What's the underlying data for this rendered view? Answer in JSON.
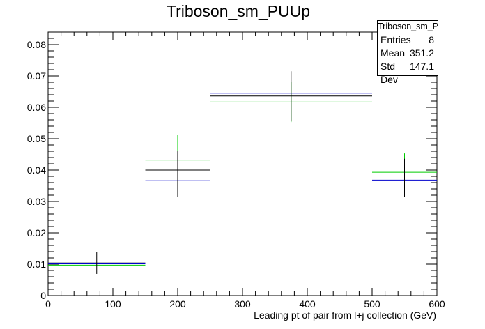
{
  "chart_data": {
    "type": "scatter",
    "title": "Triboson_sm_PUUp",
    "xlabel": "Leading pt of pair from l+j collection (GeV)",
    "ylabel": "",
    "xlim": [
      0,
      600
    ],
    "ylim": [
      0,
      0.084
    ],
    "xticks": [
      0,
      100,
      200,
      300,
      400,
      500,
      600
    ],
    "yticks": [
      0,
      0.01,
      0.02,
      0.03,
      0.04,
      0.05,
      0.06,
      0.07,
      0.08
    ],
    "ytick_labels": [
      "0",
      "0.01",
      "0.02",
      "0.03",
      "0.04",
      "0.05",
      "0.06",
      "0.07",
      "0.08"
    ],
    "grid": false,
    "legend": "top-right",
    "series": [
      {
        "color": "#00cc00",
        "points": [
          {
            "xlow": 0,
            "xhigh": 150,
            "y": 0.0097,
            "ylow": 0.0097,
            "yhigh": 0.0097
          },
          {
            "xlow": 150,
            "xhigh": 250,
            "y": 0.0432,
            "ylow": 0.0352,
            "yhigh": 0.0512
          },
          {
            "xlow": 250,
            "xhigh": 500,
            "y": 0.0617,
            "ylow": 0.0553,
            "yhigh": 0.0681
          },
          {
            "xlow": 500,
            "xhigh": 600,
            "y": 0.0393,
            "ylow": 0.0333,
            "yhigh": 0.0453
          }
        ]
      },
      {
        "color": "#0000cc",
        "points": [
          {
            "xlow": 0,
            "xhigh": 150,
            "y": 0.0101,
            "ylow": 0.0101,
            "yhigh": 0.0101
          },
          {
            "xlow": 150,
            "xhigh": 250,
            "y": 0.0366,
            "ylow": 0.0366,
            "yhigh": 0.0366
          },
          {
            "xlow": 250,
            "xhigh": 500,
            "y": 0.0645,
            "ylow": 0.0645,
            "yhigh": 0.0645
          },
          {
            "xlow": 500,
            "xhigh": 600,
            "y": 0.0368,
            "ylow": 0.0368,
            "yhigh": 0.0368
          }
        ]
      },
      {
        "color": "#000000",
        "points": [
          {
            "xlow": 0,
            "xhigh": 150,
            "y": 0.0104,
            "ylow": 0.0069,
            "yhigh": 0.0139
          },
          {
            "xlow": 150,
            "xhigh": 250,
            "y": 0.04,
            "ylow": 0.0314,
            "yhigh": 0.0461
          },
          {
            "xlow": 250,
            "xhigh": 500,
            "y": 0.0636,
            "ylow": 0.0557,
            "yhigh": 0.0715
          },
          {
            "xlow": 500,
            "xhigh": 600,
            "y": 0.0381,
            "ylow": 0.0314,
            "yhigh": 0.0436
          }
        ]
      }
    ]
  },
  "stats": {
    "title": "Triboson_sm_PUUp",
    "entries_label": "Entries",
    "entries_value": "8",
    "mean_label": "Mean",
    "mean_value": "351.2",
    "stddev_label": "Std Dev",
    "stddev_value": "147.1"
  }
}
